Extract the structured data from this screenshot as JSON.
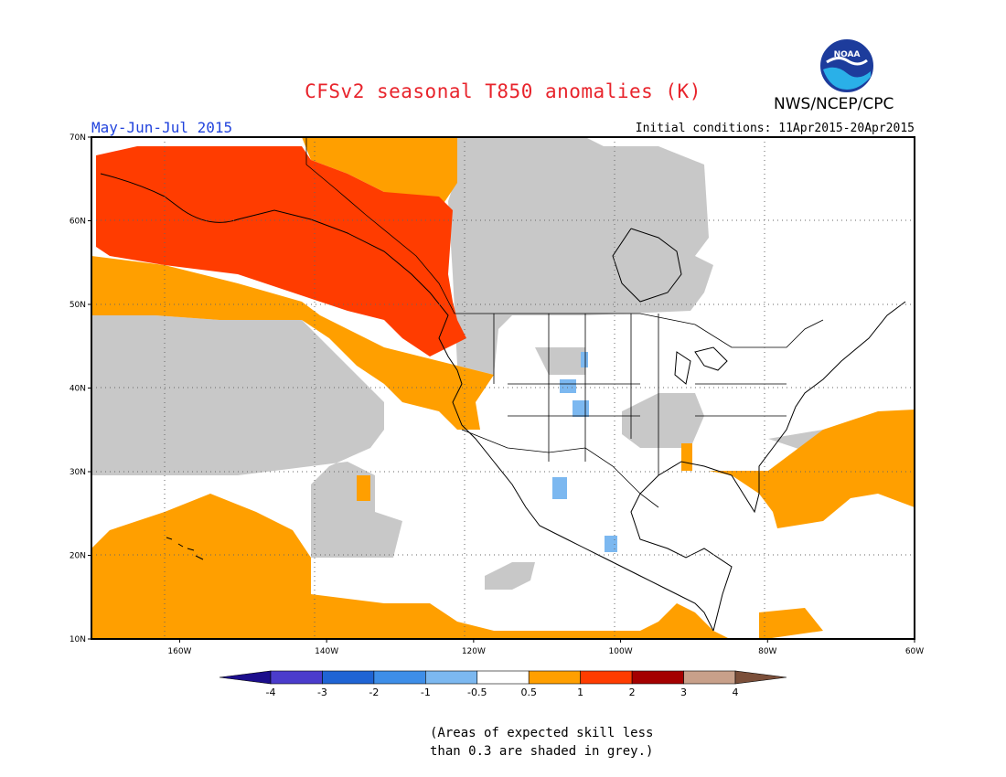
{
  "header": {
    "title": "CFSv2 seasonal T850 anomalies (K)",
    "organization": "NWS/NCEP/CPC",
    "logo_text": "NOAA",
    "period": "May-Jun-Jul 2015",
    "initial_conditions": "Initial conditions: 11Apr2015-20Apr2015"
  },
  "map": {
    "lat_labels": [
      "70N",
      "60N",
      "50N",
      "40N",
      "30N",
      "20N",
      "10N"
    ],
    "lon_labels": [
      "160W",
      "140W",
      "120W",
      "100W",
      "80W",
      "60W"
    ],
    "lon_range": [
      -172,
      -60
    ],
    "lat_range": [
      10,
      70
    ],
    "grid": true,
    "skill_mask_color": "#c8c8c8"
  },
  "colorbar": {
    "tick_labels": [
      "-4",
      "-3",
      "-2",
      "-1",
      "-0.5",
      "0.5",
      "1",
      "2",
      "3",
      "4"
    ],
    "colors": [
      "#1c0e8c",
      "#4b3ccc",
      "#1f64d4",
      "#3e8ee8",
      "#7cb8f0",
      "#ffffff",
      "#ff9f00",
      "#ff3c00",
      "#a40000",
      "#c8a08a",
      "#7b4f3a"
    ]
  },
  "footnote": {
    "line1": "(Areas of expected skill less",
    "line2": "than 0.3 are shaded in grey.)"
  }
}
